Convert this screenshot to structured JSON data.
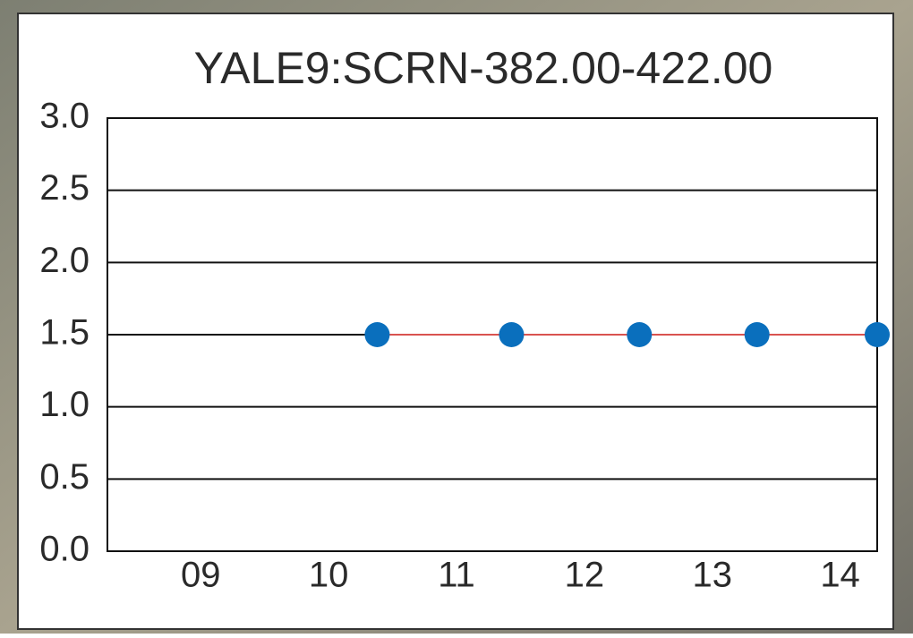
{
  "chart_data": {
    "type": "line",
    "title": "YALE9:SCRN-382.00-422.00",
    "x": [
      10.38,
      11.43,
      12.43,
      13.35,
      14.29
    ],
    "values": [
      1.5,
      1.5,
      1.5,
      1.5,
      1.5
    ],
    "line_color": "#d9534f",
    "marker_color": "#0a6fbd",
    "xlim": [
      8.27,
      14.29
    ],
    "xticks": [
      {
        "value": 9,
        "label": "09"
      },
      {
        "value": 10,
        "label": "10"
      },
      {
        "value": 11,
        "label": "11"
      },
      {
        "value": 12,
        "label": "12"
      },
      {
        "value": 13,
        "label": "13"
      },
      {
        "value": 14,
        "label": "14"
      }
    ],
    "ylim": [
      0,
      3
    ],
    "yticks": [
      {
        "value": 0,
        "label": "0.0"
      },
      {
        "value": 0.5,
        "label": "0.5"
      },
      {
        "value": 1,
        "label": "1.0"
      },
      {
        "value": 1.5,
        "label": "1.5"
      },
      {
        "value": 2,
        "label": "2.0"
      },
      {
        "value": 2.5,
        "label": "2.5"
      },
      {
        "value": 3,
        "label": "3.0"
      }
    ],
    "grid": true
  }
}
